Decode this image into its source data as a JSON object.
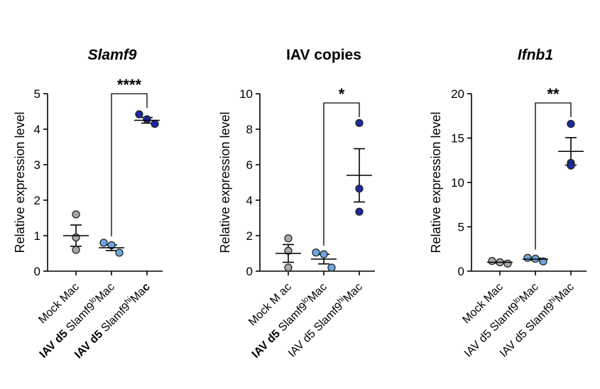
{
  "chart_data": [
    {
      "type": "scatter",
      "title": "Slamf9",
      "title_style": "bold-italic",
      "ylabel": "Relative expression level",
      "ylim": [
        0,
        5
      ],
      "yticks": [
        "0",
        "1",
        "2",
        "3",
        "4",
        "5"
      ],
      "categories": [
        {
          "name": "Mock Mac",
          "parts": [
            {
              "t": "Mock Mac"
            }
          ]
        },
        {
          "name": "IAV d5 Slamf9loMac",
          "parts": [
            {
              "t": "IAV d5",
              "b": true
            },
            {
              "t": " Slamf9"
            },
            {
              "t": "lo",
              "sup": true
            },
            {
              "t": "Mac"
            }
          ]
        },
        {
          "name": "IAV d5 Slamf9hiMac",
          "parts": [
            {
              "t": "IAV d5",
              "b": true
            },
            {
              "t": " Slamf9"
            },
            {
              "t": "hi",
              "sup": true
            },
            {
              "t": "Ma"
            },
            {
              "t": "c",
              "b": true
            }
          ]
        }
      ],
      "series": [
        {
          "name": "Mock Mac",
          "color": "#a8a8a8",
          "values": [
            1.6,
            0.95,
            0.6
          ],
          "mean": 1.0,
          "sem": 0.3
        },
        {
          "name": "IAV d5 Slamf9loMac",
          "color": "#6ea6df",
          "values": [
            0.8,
            0.73,
            0.52
          ],
          "mean": 0.66,
          "sem": 0.08
        },
        {
          "name": "IAV d5 Slamf9hiMac",
          "color": "#1c2aa0",
          "values": [
            4.42,
            4.28,
            4.15
          ],
          "mean": 4.25,
          "sem": 0.08
        }
      ],
      "significance": {
        "label": "****",
        "from": 1,
        "to": 2
      }
    },
    {
      "type": "scatter",
      "title": "IAV copies",
      "title_style": "bold",
      "ylabel": "Relative expression level",
      "ylim": [
        0,
        10
      ],
      "yticks": [
        "0",
        "2",
        "4",
        "6",
        "8",
        "10"
      ],
      "categories": [
        {
          "name": "Mock M ac",
          "parts": [
            {
              "t": "Mock M ac"
            }
          ]
        },
        {
          "name": "IAV d5 Slamf9loMac",
          "parts": [
            {
              "t": "IAV d5",
              "b": true
            },
            {
              "t": " Slamf9"
            },
            {
              "t": "lo",
              "sup": true
            },
            {
              "t": "Mac"
            }
          ]
        },
        {
          "name": "IAV d5 Slamf9hiMac",
          "parts": [
            {
              "t": "IAV d5 Slamf9"
            },
            {
              "t": "hi",
              "sup": true
            },
            {
              "t": "Mac"
            }
          ]
        }
      ],
      "series": [
        {
          "name": "Mock M ac",
          "color": "#a8a8a8",
          "values": [
            1.85,
            1.15,
            0.2
          ],
          "mean": 1.0,
          "sem": 0.5
        },
        {
          "name": "IAV d5 Slamf9loMac",
          "color": "#6ea6df",
          "values": [
            1.05,
            0.95,
            0.2
          ],
          "mean": 0.68,
          "sem": 0.27
        },
        {
          "name": "IAV d5 Slamf9hiMac",
          "color": "#1c2aa0",
          "values": [
            8.35,
            4.65,
            3.35
          ],
          "mean": 5.4,
          "sem": 1.5
        }
      ],
      "significance": {
        "label": "*",
        "from": 1,
        "to": 2
      }
    },
    {
      "type": "scatter",
      "title": "Ifnb1",
      "title_style": "bold-italic",
      "ylabel": "Relative expression level",
      "ylim": [
        0,
        20
      ],
      "yticks": [
        "0",
        "5",
        "10",
        "15",
        "20"
      ],
      "categories": [
        {
          "name": "Mock Mac",
          "parts": [
            {
              "t": "Mock Mac"
            }
          ]
        },
        {
          "name": "IAV d5 Slamf9loMac",
          "parts": [
            {
              "t": "IAV d5 Slamf9"
            },
            {
              "t": "lo",
              "sup": true
            },
            {
              "t": "Mac"
            }
          ]
        },
        {
          "name": "IAV d5 Slamf9hiMac",
          "parts": [
            {
              "t": "IAV d5 Slamf9"
            },
            {
              "t": "hi",
              "sup": true
            },
            {
              "t": "Mac"
            }
          ]
        }
      ],
      "series": [
        {
          "name": "Mock Mac",
          "color": "#a8a8a8",
          "values": [
            1.15,
            1.0,
            0.85
          ],
          "mean": 1.0,
          "sem": 0.1
        },
        {
          "name": "IAV d5 Slamf9loMac",
          "color": "#6ea6df",
          "values": [
            1.5,
            1.4,
            1.1
          ],
          "mean": 1.35,
          "sem": 0.12
        },
        {
          "name": "IAV d5 Slamf9hiMac",
          "color": "#1c2aa0",
          "values": [
            16.6,
            12.2,
            11.9
          ],
          "mean": 13.5,
          "sem": 1.55
        }
      ],
      "significance": {
        "label": "**",
        "from": 1,
        "to": 2
      }
    }
  ]
}
